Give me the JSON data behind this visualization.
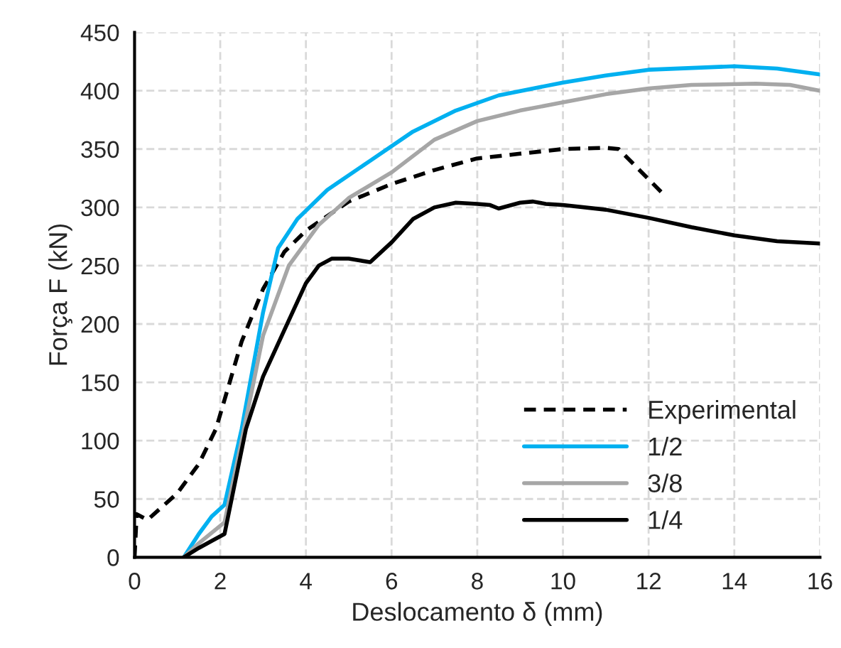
{
  "chart_data": {
    "type": "line",
    "xlabel": "Deslocamento δ (mm)",
    "ylabel": "Força F (kN)",
    "xlim": [
      0,
      16
    ],
    "xticks": [
      0,
      2,
      4,
      6,
      8,
      10,
      12,
      14,
      16
    ],
    "ylim": [
      0,
      450
    ],
    "yticks": [
      0,
      50,
      100,
      150,
      200,
      250,
      300,
      350,
      400,
      450
    ],
    "grid": true,
    "legend": "bottom right",
    "marker": "none",
    "series": [
      {
        "name": "Experimental",
        "color": "#000000",
        "line_style": "dashed",
        "x": [
          0,
          0.05,
          0.3,
          1,
          1.5,
          1.9,
          2.1,
          2.5,
          3,
          3.5,
          4,
          5,
          6,
          7,
          8,
          9,
          10,
          11,
          11.3,
          12.3
        ],
        "values": [
          0,
          37,
          32,
          55,
          80,
          110,
          135,
          185,
          230,
          262,
          280,
          305,
          320,
          332,
          342,
          346,
          350,
          351,
          350,
          313
        ]
      },
      {
        "name": "1/2",
        "color": "#00b0f0",
        "line_style": "solid",
        "x": [
          1.15,
          1.5,
          1.8,
          2.1,
          2.5,
          3,
          3.35,
          3.8,
          4.5,
          5.5,
          6.5,
          7.5,
          8.5,
          10,
          11,
          12,
          14,
          15,
          16
        ],
        "values": [
          0,
          20,
          35,
          45,
          110,
          210,
          265,
          290,
          315,
          340,
          365,
          383,
          396,
          407,
          413,
          418,
          421,
          419,
          414
        ]
      },
      {
        "name": "3/8",
        "color": "#a6a6a6",
        "line_style": "solid",
        "x": [
          1.15,
          1.5,
          2.1,
          2.5,
          3,
          3.6,
          4.3,
          5,
          6,
          7,
          8,
          9,
          10,
          11,
          12,
          13,
          14.5,
          15.3,
          16
        ],
        "values": [
          0,
          12,
          30,
          100,
          190,
          250,
          285,
          308,
          330,
          358,
          374,
          383,
          390,
          397,
          402,
          405,
          406,
          405,
          400
        ]
      },
      {
        "name": "1/4",
        "color": "#000000",
        "line_style": "solid",
        "x": [
          1.15,
          1.5,
          2.1,
          2.6,
          3,
          3.5,
          4,
          4.3,
          4.6,
          5,
          5.5,
          6,
          6.5,
          7,
          7.5,
          8,
          8.3,
          8.5,
          9,
          9.3,
          9.6,
          10,
          11,
          12,
          13,
          14,
          15,
          16
        ],
        "values": [
          0,
          8,
          20,
          110,
          155,
          195,
          235,
          250,
          256,
          256,
          253,
          270,
          290,
          300,
          304,
          303,
          302,
          299,
          304,
          305,
          303,
          302,
          298,
          291,
          283,
          276,
          271,
          269
        ]
      }
    ]
  }
}
